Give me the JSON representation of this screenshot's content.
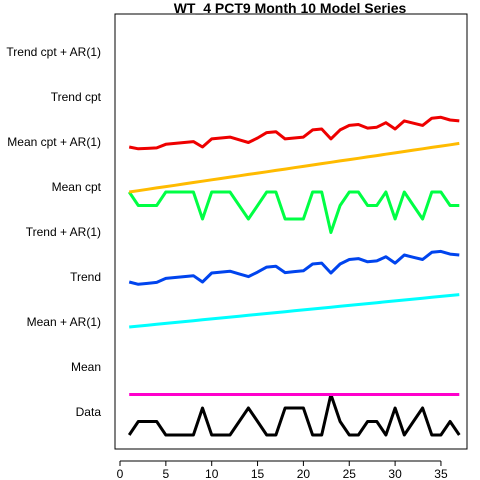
{
  "chart_data": {
    "type": "line",
    "title": "WT_4 PCT9 Month 10 Model Series",
    "xlabel": "",
    "ylabel": "",
    "xlim": [
      0,
      38
    ],
    "x_ticks": [
      0,
      5,
      10,
      15,
      20,
      25,
      30,
      35
    ],
    "grid": false,
    "legend": "none",
    "rows": [
      "Data",
      "Mean",
      "Mean + AR(1)",
      "Trend",
      "Trend + AR(1)",
      "Mean cpt",
      "Mean cpt + AR(1)",
      "Trend cpt",
      "Trend cpt + AR(1)"
    ],
    "row_offset_unit": 1,
    "x": [
      1,
      2,
      3,
      4,
      5,
      6,
      7,
      8,
      9,
      10,
      11,
      12,
      13,
      14,
      15,
      16,
      17,
      18,
      19,
      20,
      21,
      22,
      23,
      24,
      25,
      26,
      27,
      28,
      29,
      30,
      31,
      32,
      33,
      34,
      35,
      36,
      37
    ],
    "series": [
      {
        "name": "Data",
        "color": "#000000",
        "values": [
          0.0,
          0.3,
          0.3,
          0.3,
          0.0,
          0.0,
          0.0,
          0.0,
          0.6,
          0.0,
          0.0,
          0.0,
          0.3,
          0.6,
          0.3,
          0.0,
          0.0,
          0.6,
          0.6,
          0.6,
          0.0,
          0.0,
          0.9,
          0.3,
          0.0,
          0.0,
          0.3,
          0.3,
          0.0,
          0.6,
          0.0,
          0.3,
          0.6,
          0.0,
          0.0,
          0.3,
          0.0
        ]
      },
      {
        "name": "Mean",
        "color": "#ff00cc",
        "values": [
          0.9,
          0.9,
          0.9,
          0.9,
          0.9,
          0.9,
          0.9,
          0.9,
          0.9,
          0.9,
          0.9,
          0.9,
          0.9,
          0.9,
          0.9,
          0.9,
          0.9,
          0.9,
          0.9,
          0.9,
          0.9,
          0.9,
          0.9,
          0.9,
          0.9,
          0.9,
          0.9,
          0.9,
          0.9,
          0.9,
          0.9,
          0.9,
          0.9,
          0.9,
          0.9,
          0.9,
          0.9
        ]
      },
      {
        "name": "Trend",
        "color": "#00ffff",
        "values": [
          2.4,
          2.42,
          2.44,
          2.46,
          2.48,
          2.5,
          2.52,
          2.54,
          2.56,
          2.58,
          2.6,
          2.62,
          2.64,
          2.66,
          2.68,
          2.7,
          2.72,
          2.74,
          2.76,
          2.78,
          2.8,
          2.82,
          2.84,
          2.86,
          2.88,
          2.9,
          2.92,
          2.94,
          2.96,
          2.98,
          3.0,
          3.02,
          3.04,
          3.06,
          3.08,
          3.1,
          3.12
        ]
      },
      {
        "name": "Trend + AR(1)",
        "color": "#0044ee",
        "values": [
          3.4,
          3.35,
          3.37,
          3.39,
          3.48,
          3.5,
          3.52,
          3.54,
          3.4,
          3.6,
          3.62,
          3.64,
          3.58,
          3.52,
          3.62,
          3.73,
          3.75,
          3.61,
          3.63,
          3.65,
          3.8,
          3.82,
          3.6,
          3.8,
          3.9,
          3.92,
          3.85,
          3.87,
          3.96,
          3.82,
          4.0,
          3.95,
          3.9,
          4.06,
          4.08,
          4.02,
          4.0
        ]
      },
      {
        "name": "Mean cpt + AR(1)",
        "color": "#00ff44",
        "values": [
          5.4,
          5.1,
          5.1,
          5.1,
          5.4,
          5.4,
          5.4,
          5.4,
          4.8,
          5.4,
          5.4,
          5.4,
          5.1,
          4.8,
          5.1,
          5.4,
          5.4,
          4.8,
          4.8,
          4.8,
          5.4,
          5.4,
          4.5,
          5.1,
          5.4,
          5.4,
          5.1,
          5.1,
          5.4,
          4.8,
          5.4,
          5.1,
          4.8,
          5.4,
          5.4,
          5.1,
          5.1
        ]
      },
      {
        "name": "Trend cpt",
        "color": "#ffbb00",
        "values": [
          5.4,
          5.43,
          5.46,
          5.49,
          5.52,
          5.55,
          5.58,
          5.61,
          5.64,
          5.67,
          5.7,
          5.73,
          5.76,
          5.79,
          5.82,
          5.85,
          5.88,
          5.91,
          5.94,
          5.97,
          6.0,
          6.03,
          6.06,
          6.09,
          6.12,
          6.15,
          6.18,
          6.21,
          6.24,
          6.27,
          6.3,
          6.33,
          6.36,
          6.39,
          6.42,
          6.45,
          6.48
        ]
      },
      {
        "name": "Trend cpt + AR(1)",
        "color": "#ee0000",
        "values": [
          6.4,
          6.36,
          6.37,
          6.38,
          6.46,
          6.48,
          6.5,
          6.52,
          6.4,
          6.58,
          6.6,
          6.62,
          6.56,
          6.5,
          6.6,
          6.72,
          6.74,
          6.58,
          6.6,
          6.62,
          6.78,
          6.8,
          6.58,
          6.78,
          6.88,
          6.9,
          6.82,
          6.84,
          6.94,
          6.8,
          6.98,
          6.93,
          6.88,
          7.04,
          7.06,
          7.0,
          6.98
        ]
      }
    ]
  }
}
